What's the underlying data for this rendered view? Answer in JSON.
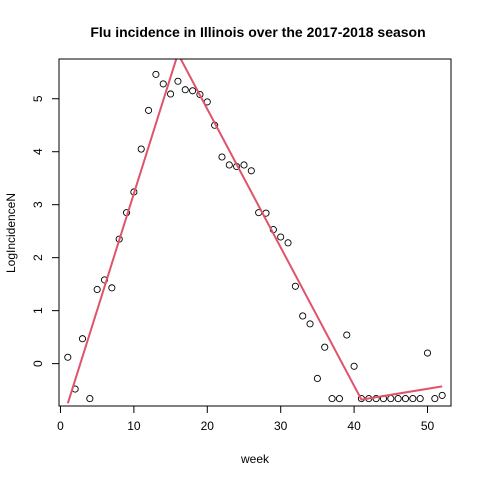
{
  "chart_data": {
    "type": "scatter",
    "title": "Flu incidence in Illinois over the 2017-2018 season",
    "xlabel": "week",
    "ylabel": "LogIncidenceN",
    "xlim": [
      -0.2,
      53.2
    ],
    "ylim": [
      -0.8,
      5.75
    ],
    "x_ticks": [
      0,
      10,
      20,
      30,
      40,
      50
    ],
    "y_ticks": [
      0,
      1,
      2,
      3,
      4,
      5
    ],
    "grid": false,
    "legend": "none",
    "points": {
      "x": [
        1,
        2,
        3,
        4,
        5,
        6,
        7,
        8,
        9,
        10,
        11,
        12,
        13,
        14,
        15,
        16,
        17,
        18,
        19,
        20,
        21,
        22,
        23,
        24,
        25,
        26,
        27,
        28,
        29,
        30,
        31,
        32,
        33,
        34,
        35,
        36,
        37,
        38,
        39,
        40,
        41,
        42,
        43,
        44,
        45,
        46,
        47,
        48,
        49,
        50,
        51,
        52
      ],
      "y": [
        0.12,
        -0.48,
        0.47,
        -0.66,
        1.4,
        1.58,
        1.43,
        2.35,
        2.85,
        3.24,
        4.05,
        4.78,
        5.46,
        5.28,
        5.09,
        5.33,
        5.17,
        5.15,
        5.08,
        4.94,
        4.5,
        3.9,
        3.75,
        3.72,
        3.75,
        3.64,
        2.85,
        2.84,
        2.53,
        2.39,
        2.28,
        1.46,
        0.9,
        0.75,
        -0.28,
        0.31,
        -0.66,
        -0.66,
        0.54,
        -0.05,
        -0.66,
        -0.66,
        -0.66,
        -0.66,
        -0.66,
        -0.66,
        -0.66,
        -0.66,
        -0.66,
        0.2,
        -0.66,
        -0.6
      ]
    },
    "fit_line": {
      "x": [
        1,
        16,
        41,
        52
      ],
      "y": [
        -0.75,
        5.85,
        -0.68,
        -0.43
      ],
      "color": "#DF536B"
    }
  }
}
